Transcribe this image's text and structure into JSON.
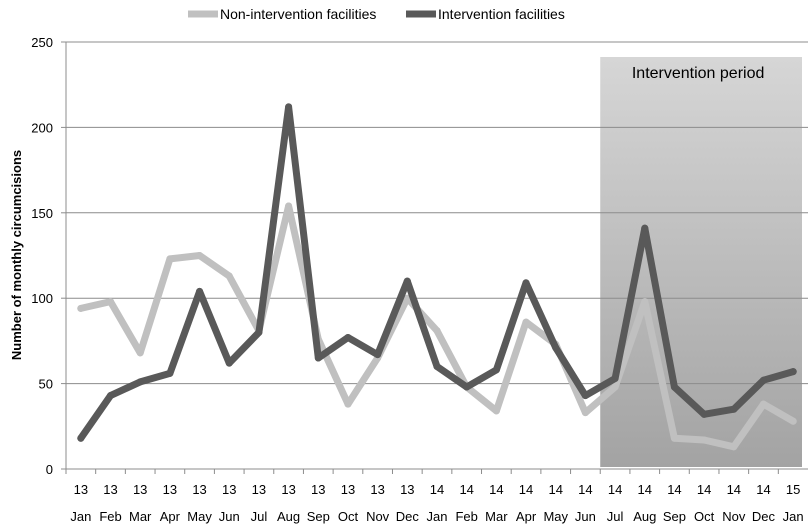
{
  "chart_data": {
    "type": "line",
    "ylabel": "Number of monthly circumcisions",
    "ylim": [
      0,
      250
    ],
    "yticks": [
      0,
      50,
      100,
      150,
      200,
      250
    ],
    "grid": true,
    "legend_position": "top-center",
    "categories": [
      {
        "year": "13",
        "month": "Jan"
      },
      {
        "year": "13",
        "month": "Feb"
      },
      {
        "year": "13",
        "month": "Mar"
      },
      {
        "year": "13",
        "month": "Apr"
      },
      {
        "year": "13",
        "month": "May"
      },
      {
        "year": "13",
        "month": "Jun"
      },
      {
        "year": "13",
        "month": "Jul"
      },
      {
        "year": "13",
        "month": "Aug"
      },
      {
        "year": "13",
        "month": "Sep"
      },
      {
        "year": "13",
        "month": "Oct"
      },
      {
        "year": "13",
        "month": "Nov"
      },
      {
        "year": "13",
        "month": "Dec"
      },
      {
        "year": "14",
        "month": "Jan"
      },
      {
        "year": "14",
        "month": "Feb"
      },
      {
        "year": "14",
        "month": "Mar"
      },
      {
        "year": "14",
        "month": "Apr"
      },
      {
        "year": "14",
        "month": "May"
      },
      {
        "year": "14",
        "month": "Jun"
      },
      {
        "year": "14",
        "month": "Jul"
      },
      {
        "year": "14",
        "month": "Aug"
      },
      {
        "year": "14",
        "month": "Sep"
      },
      {
        "year": "14",
        "month": "Oct"
      },
      {
        "year": "14",
        "month": "Nov"
      },
      {
        "year": "14",
        "month": "Dec"
      },
      {
        "year": "15",
        "month": "Jan"
      }
    ],
    "series": [
      {
        "name": "Non-intervention facilities",
        "color": "#c0c0c0",
        "values": [
          94,
          98,
          68,
          123,
          125,
          113,
          81,
          154,
          76,
          38,
          65,
          100,
          81,
          48,
          34,
          86,
          73,
          33,
          48,
          98,
          18,
          17,
          13,
          38,
          28
        ]
      },
      {
        "name": "Intervention facilities",
        "color": "#595959",
        "values": [
          18,
          43,
          51,
          56,
          104,
          62,
          80,
          212,
          65,
          77,
          67,
          110,
          60,
          48,
          58,
          109,
          71,
          43,
          53,
          141,
          48,
          32,
          35,
          52,
          57
        ]
      }
    ],
    "shaded_region": {
      "label": "Intervention period",
      "start_index": 17.5,
      "end_index": 24.5
    }
  }
}
